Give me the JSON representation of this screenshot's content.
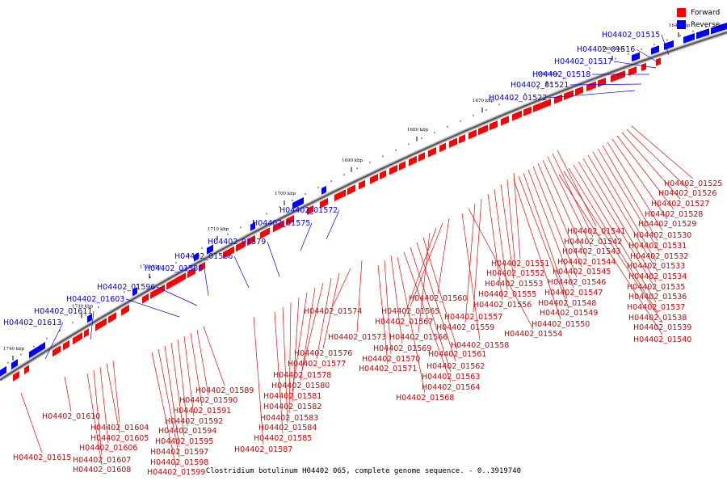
{
  "legend": {
    "forward_label": "Forward",
    "reverse_label": "Reverse",
    "forward_color": "#ff0000",
    "reverse_color": "#0000ff"
  },
  "footer": {
    "caption": "Clostridium botulinum H04402 065, complete genome sequence. - 0..3919740"
  },
  "ticks": [
    "1640 kbp",
    "1650 kbp",
    "1660 kbp",
    "1670 kbp",
    "1680 kbp",
    "1690 kbp",
    "1700 kbp",
    "1710 kbp",
    "1720 kbp",
    "1730 kbp",
    "1740 kbp"
  ],
  "reverse_genes": [
    "H04402_01515",
    "H04402_01516",
    "H04402_01517",
    "H04402_01518",
    "H04402_01521",
    "H04402_01522",
    "H04402_01572",
    "H04402_01575",
    "H04402_01579",
    "H04402_01586",
    "H04402_01588",
    "H04402_01596",
    "H04402_01603",
    "H04402_01611",
    "H04402_01613"
  ],
  "forward_genes": [
    "H04402_01525",
    "H04402_01526",
    "H04402_01527",
    "H04402_01528",
    "H04402_01529",
    "H04402_01530",
    "H04402_01531",
    "H04402_01532",
    "H04402_01533",
    "H04402_01534",
    "H04402_01535",
    "H04402_01536",
    "H04402_01537",
    "H04402_01538",
    "H04402_01539",
    "H04402_01540",
    "H04402_01541",
    "H04402_01542",
    "H04402_01543",
    "H04402_01544",
    "H04402_01545",
    "H04402_01546",
    "H04402_01547",
    "H04402_01548",
    "H04402_01549",
    "H04402_01550",
    "H04402_01551",
    "H04402_01552",
    "H04402_01553",
    "H04402_01555",
    "H04402_01556",
    "H04402_01557",
    "H04402_01559",
    "H04402_01554",
    "H04402_01558",
    "H04402_01560",
    "H04402_01565",
    "H04402_01567",
    "H04402_01566",
    "H04402_01561",
    "H04402_01562",
    "H04402_01563",
    "H04402_01564",
    "H04402_01568",
    "H04402_01569",
    "H04402_01570",
    "H04402_01571",
    "H04402_01573",
    "H04402_01574",
    "H04402_01576",
    "H04402_01577",
    "H04402_01578",
    "H04402_01580",
    "H04402_01581",
    "H04402_01582",
    "H04402_01583",
    "H04402_01584",
    "H04402_01585",
    "H04402_01587",
    "H04402_01589",
    "H04402_01590",
    "H04402_01591",
    "H04402_01592",
    "H04402_01594",
    "H04402_01595",
    "H04402_01597",
    "H04402_01598",
    "H04402_01599",
    "H04402_01604",
    "H04402_01605",
    "H04402_01606",
    "H04402_01607",
    "H04402_01608",
    "H04402_01610",
    "H04402_01615"
  ]
}
